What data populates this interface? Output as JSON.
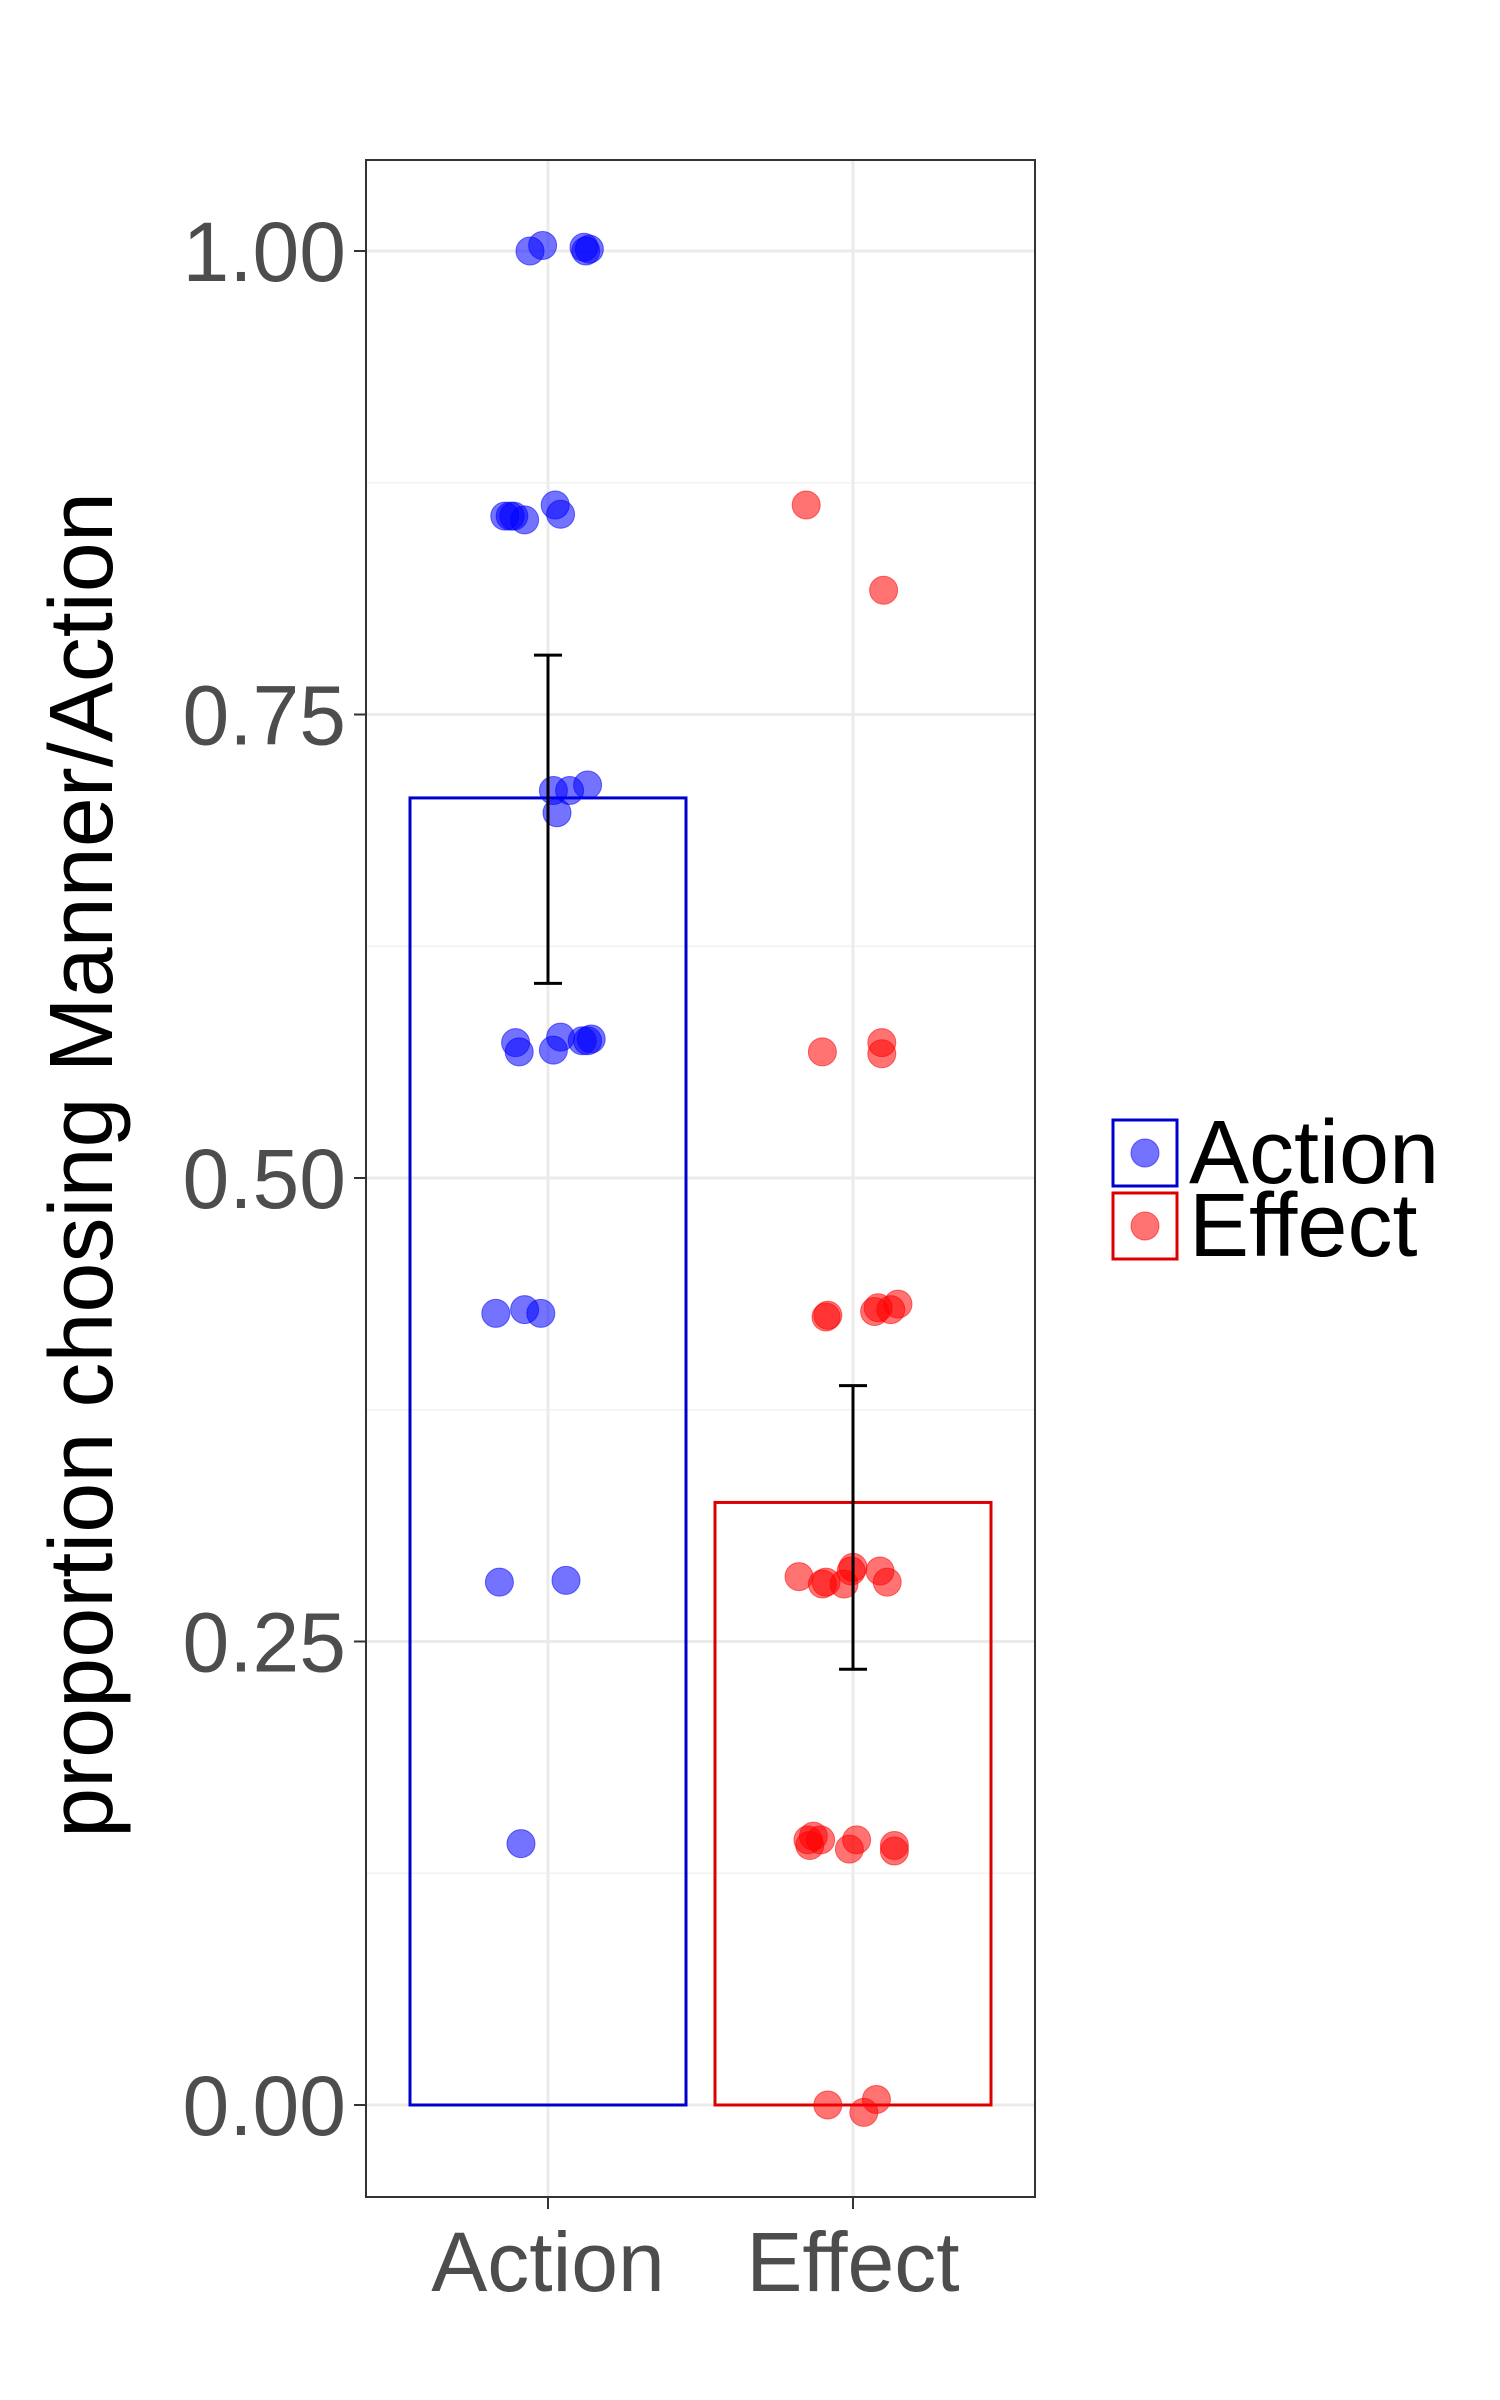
{
  "chart_data": {
    "type": "bar",
    "title": "",
    "xlabel": "",
    "ylabel": "proportion chosing Manner/Action",
    "categories": [
      "Action",
      "Effect"
    ],
    "ylim": [
      -0.05,
      1.05
    ],
    "yticks": [
      "0.00",
      "0.25",
      "0.50",
      "0.75",
      "1.00"
    ],
    "ytick_values": [
      0,
      0.25,
      0.5,
      0.75,
      1.0
    ],
    "grid": true,
    "legend_position": "right",
    "legend": [
      {
        "label": "Action",
        "color": "#0000ee"
      },
      {
        "label": "Effect",
        "color": "#ee0000"
      }
    ],
    "bars": [
      {
        "category": "Action",
        "mean": 0.705,
        "ci_low": 0.605,
        "ci_high": 0.782,
        "color": "#0000cc"
      },
      {
        "category": "Effect",
        "mean": 0.325,
        "ci_low": 0.235,
        "ci_high": 0.388,
        "color": "#dd0000"
      }
    ],
    "points": {
      "Action": [
        {
          "x": -0.1,
          "y": 1.0
        },
        {
          "x": -0.03,
          "y": 1.003
        },
        {
          "x": 0.2,
          "y": 1.002
        },
        {
          "x": 0.21,
          "y": 1.0
        },
        {
          "x": 0.23,
          "y": 1.001
        },
        {
          "x": -0.24,
          "y": 0.857
        },
        {
          "x": -0.21,
          "y": 0.857
        },
        {
          "x": -0.19,
          "y": 0.857
        },
        {
          "x": -0.13,
          "y": 0.855
        },
        {
          "x": 0.04,
          "y": 0.863
        },
        {
          "x": 0.07,
          "y": 0.858
        },
        {
          "x": 0.03,
          "y": 0.709
        },
        {
          "x": 0.05,
          "y": 0.697
        },
        {
          "x": 0.12,
          "y": 0.709
        },
        {
          "x": 0.22,
          "y": 0.712
        },
        {
          "x": -0.18,
          "y": 0.573
        },
        {
          "x": -0.16,
          "y": 0.568
        },
        {
          "x": 0.03,
          "y": 0.569
        },
        {
          "x": 0.07,
          "y": 0.576
        },
        {
          "x": 0.19,
          "y": 0.574
        },
        {
          "x": 0.22,
          "y": 0.574
        },
        {
          "x": 0.24,
          "y": 0.575
        },
        {
          "x": -0.29,
          "y": 0.427
        },
        {
          "x": -0.13,
          "y": 0.429
        },
        {
          "x": -0.04,
          "y": 0.427
        },
        {
          "x": -0.27,
          "y": 0.282
        },
        {
          "x": 0.1,
          "y": 0.283
        },
        {
          "x": -0.15,
          "y": 0.141
        }
      ],
      "Effect": [
        {
          "x": -0.26,
          "y": 0.863
        },
        {
          "x": 0.17,
          "y": 0.817
        },
        {
          "x": -0.17,
          "y": 0.568
        },
        {
          "x": 0.16,
          "y": 0.573
        },
        {
          "x": 0.16,
          "y": 0.567
        },
        {
          "x": -0.15,
          "y": 0.425
        },
        {
          "x": -0.14,
          "y": 0.426
        },
        {
          "x": 0.12,
          "y": 0.428
        },
        {
          "x": 0.14,
          "y": 0.43
        },
        {
          "x": 0.21,
          "y": 0.429
        },
        {
          "x": 0.25,
          "y": 0.432
        },
        {
          "x": -0.3,
          "y": 0.285
        },
        {
          "x": -0.17,
          "y": 0.281
        },
        {
          "x": -0.15,
          "y": 0.282
        },
        {
          "x": -0.05,
          "y": 0.281
        },
        {
          "x": -0.01,
          "y": 0.288
        },
        {
          "x": 0.0,
          "y": 0.29
        },
        {
          "x": 0.15,
          "y": 0.288
        },
        {
          "x": 0.19,
          "y": 0.282
        },
        {
          "x": -0.25,
          "y": 0.143
        },
        {
          "x": -0.24,
          "y": 0.14
        },
        {
          "x": -0.22,
          "y": 0.145
        },
        {
          "x": -0.18,
          "y": 0.143
        },
        {
          "x": -0.02,
          "y": 0.138
        },
        {
          "x": 0.02,
          "y": 0.143
        },
        {
          "x": 0.23,
          "y": 0.14
        },
        {
          "x": 0.23,
          "y": 0.137
        },
        {
          "x": -0.14,
          "y": 0.0
        },
        {
          "x": 0.06,
          "y": -0.004
        },
        {
          "x": 0.13,
          "y": 0.003
        }
      ]
    }
  }
}
